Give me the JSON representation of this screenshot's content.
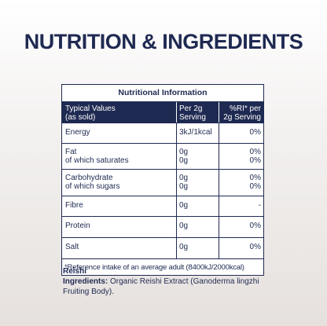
{
  "heading": "NUTRITION & INGREDIENTS",
  "table": {
    "title": "Nutritional Information",
    "header": {
      "col1": [
        "Typical Values",
        "(as sold)"
      ],
      "col2": [
        "Per 2g",
        "Serving"
      ],
      "col3": [
        "%RI* per",
        "2g Serving"
      ]
    },
    "rows": [
      {
        "labels": [
          "Energy"
        ],
        "per_serving": [
          "3kJ/1kcal"
        ],
        "ri": [
          "0%"
        ]
      },
      {
        "labels": [
          "Fat",
          "of which saturates"
        ],
        "per_serving": [
          "0g",
          "0g"
        ],
        "ri": [
          "0%",
          "0%"
        ]
      },
      {
        "labels": [
          "Carbohydrate",
          "of which sugars"
        ],
        "per_serving": [
          "0g",
          "0g"
        ],
        "ri": [
          "0%",
          "0%"
        ]
      },
      {
        "labels": [
          "Fibre"
        ],
        "per_serving": [
          "0g"
        ],
        "ri": [
          "-"
        ]
      },
      {
        "labels": [
          "Protein"
        ],
        "per_serving": [
          "0g"
        ],
        "ri": [
          "0%"
        ]
      },
      {
        "labels": [
          "Salt"
        ],
        "per_serving": [
          "0g"
        ],
        "ri": [
          "0%"
        ]
      }
    ],
    "footnote": "*Reference intake of an average adult (8400kJ/2000kcal)"
  },
  "product_name": "Reishi",
  "ingredients": {
    "label": "Ingredients:",
    "text": "Organic Reishi Extract (Ganoderma lingzhi Fruiting Body)."
  }
}
